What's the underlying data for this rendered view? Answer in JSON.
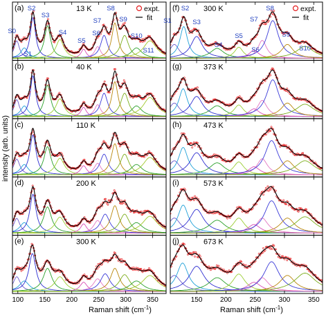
{
  "figure": {
    "ylabel": "intensity (arb. units)",
    "xlabel": "Raman shift (cm",
    "xlabel_sup": "-1",
    "xlabel_close": ")",
    "legend": {
      "expt": "expt.",
      "fit": "fit"
    }
  },
  "colors": {
    "data_points": "#e41a1c",
    "fit_line": "#000000",
    "peak_labels": "#1f3fbf",
    "peaks": [
      "#6a5acd",
      "#1fa0d8",
      "#2c2cd0",
      "#2aa02a",
      "#9acd32",
      "#d84db5",
      "#e377c2",
      "#3a3ad8",
      "#b8860b",
      "#7cae1c",
      "#2ca02c",
      "#a0c82a"
    ]
  },
  "chart_data": [
    {
      "type": "line",
      "panel": "(a)",
      "temp": "13 K",
      "xlim": [
        90,
        375
      ],
      "peak_labels": [
        "S0",
        "S1",
        "S2",
        "S3",
        "S4",
        "S5",
        "S6",
        "S7",
        "S8",
        "S9",
        "S10",
        "S11"
      ],
      "peaks": [
        {
          "name": "S0",
          "center": 98,
          "width": 6,
          "amp": 0.42
        },
        {
          "name": "S1",
          "center": 112,
          "width": 8,
          "amp": 0.25
        },
        {
          "name": "S2",
          "center": 128,
          "width": 6,
          "amp": 0.98
        },
        {
          "name": "S3",
          "center": 155,
          "width": 7,
          "amp": 0.78
        },
        {
          "name": "S4",
          "center": 178,
          "width": 9,
          "amp": 0.45
        },
        {
          "name": "S5",
          "center": 222,
          "width": 6,
          "amp": 0.22
        },
        {
          "name": "S6",
          "center": 248,
          "width": 7,
          "amp": 0.28
        },
        {
          "name": "S7",
          "center": 260,
          "width": 8,
          "amp": 0.55
        },
        {
          "name": "S8",
          "center": 280,
          "width": 7,
          "amp": 0.85
        },
        {
          "name": "S9",
          "center": 298,
          "width": 9,
          "amp": 0.55
        },
        {
          "name": "S10",
          "center": 320,
          "width": 12,
          "amp": 0.25
        },
        {
          "name": "S11",
          "center": 345,
          "width": 15,
          "amp": 0.42
        }
      ]
    },
    {
      "type": "line",
      "panel": "(b)",
      "temp": "40 K",
      "xlim": [
        90,
        375
      ],
      "peaks": [
        {
          "name": "S0",
          "center": 98,
          "width": 6,
          "amp": 0.4
        },
        {
          "name": "S1",
          "center": 112,
          "width": 8,
          "amp": 0.25
        },
        {
          "name": "S2",
          "center": 128,
          "width": 6,
          "amp": 0.96
        },
        {
          "name": "S3",
          "center": 155,
          "width": 7,
          "amp": 0.74
        },
        {
          "name": "S4",
          "center": 178,
          "width": 9,
          "amp": 0.42
        },
        {
          "name": "S5",
          "center": 222,
          "width": 6,
          "amp": 0.22
        },
        {
          "name": "S6",
          "center": 248,
          "width": 7,
          "amp": 0.28
        },
        {
          "name": "S7",
          "center": 260,
          "width": 8,
          "amp": 0.55
        },
        {
          "name": "S8",
          "center": 280,
          "width": 7,
          "amp": 0.82
        },
        {
          "name": "S9",
          "center": 298,
          "width": 9,
          "amp": 0.55
        },
        {
          "name": "S10",
          "center": 320,
          "width": 12,
          "amp": 0.25
        },
        {
          "name": "S11",
          "center": 345,
          "width": 15,
          "amp": 0.45
        }
      ]
    },
    {
      "type": "line",
      "panel": "(c)",
      "temp": "110 K",
      "xlim": [
        90,
        375
      ],
      "peaks": [
        {
          "name": "S0",
          "center": 98,
          "width": 7,
          "amp": 0.38
        },
        {
          "name": "S1",
          "center": 112,
          "width": 9,
          "amp": 0.25
        },
        {
          "name": "S2",
          "center": 128,
          "width": 7,
          "amp": 0.96
        },
        {
          "name": "S3",
          "center": 155,
          "width": 8,
          "amp": 0.68
        },
        {
          "name": "S4",
          "center": 178,
          "width": 10,
          "amp": 0.4
        },
        {
          "name": "S5",
          "center": 222,
          "width": 7,
          "amp": 0.22
        },
        {
          "name": "S6",
          "center": 248,
          "width": 8,
          "amp": 0.28
        },
        {
          "name": "S7",
          "center": 260,
          "width": 9,
          "amp": 0.5
        },
        {
          "name": "S8",
          "center": 280,
          "width": 8,
          "amp": 0.75
        },
        {
          "name": "S9",
          "center": 298,
          "width": 10,
          "amp": 0.5
        },
        {
          "name": "S10",
          "center": 320,
          "width": 13,
          "amp": 0.25
        },
        {
          "name": "S11",
          "center": 345,
          "width": 16,
          "amp": 0.42
        }
      ]
    },
    {
      "type": "line",
      "panel": "(d)",
      "temp": "200 K",
      "xlim": [
        90,
        375
      ],
      "peaks": [
        {
          "name": "S0",
          "center": 98,
          "width": 7,
          "amp": 0.35
        },
        {
          "name": "S1",
          "center": 112,
          "width": 10,
          "amp": 0.25
        },
        {
          "name": "S2",
          "center": 128,
          "width": 7,
          "amp": 0.92
        },
        {
          "name": "S3",
          "center": 155,
          "width": 9,
          "amp": 0.62
        },
        {
          "name": "S4",
          "center": 178,
          "width": 11,
          "amp": 0.38
        },
        {
          "name": "S5",
          "center": 222,
          "width": 7,
          "amp": 0.22
        },
        {
          "name": "S6",
          "center": 248,
          "width": 9,
          "amp": 0.3
        },
        {
          "name": "S7",
          "center": 262,
          "width": 10,
          "amp": 0.45
        },
        {
          "name": "S8",
          "center": 280,
          "width": 9,
          "amp": 0.65
        },
        {
          "name": "S9",
          "center": 298,
          "width": 11,
          "amp": 0.45
        },
        {
          "name": "S10",
          "center": 320,
          "width": 14,
          "amp": 0.25
        },
        {
          "name": "S11",
          "center": 345,
          "width": 17,
          "amp": 0.4
        }
      ]
    },
    {
      "type": "line",
      "panel": "(e)",
      "temp": "300 K",
      "xlim": [
        90,
        375
      ],
      "peaks": [
        {
          "name": "S0",
          "center": 98,
          "width": 8,
          "amp": 0.35
        },
        {
          "name": "S1",
          "center": 112,
          "width": 11,
          "amp": 0.25
        },
        {
          "name": "S2",
          "center": 127,
          "width": 8,
          "amp": 0.9
        },
        {
          "name": "S3",
          "center": 155,
          "width": 10,
          "amp": 0.55
        },
        {
          "name": "S4",
          "center": 178,
          "width": 12,
          "amp": 0.35
        },
        {
          "name": "S5",
          "center": 222,
          "width": 8,
          "amp": 0.22
        },
        {
          "name": "S6",
          "center": 248,
          "width": 10,
          "amp": 0.3
        },
        {
          "name": "S7",
          "center": 262,
          "width": 11,
          "amp": 0.42
        },
        {
          "name": "S8",
          "center": 280,
          "width": 10,
          "amp": 0.55
        },
        {
          "name": "S9",
          "center": 298,
          "width": 12,
          "amp": 0.4
        },
        {
          "name": "S10",
          "center": 320,
          "width": 15,
          "amp": 0.25
        },
        {
          "name": "S11",
          "center": 345,
          "width": 18,
          "amp": 0.38
        }
      ]
    },
    {
      "type": "line",
      "panel": "(f)",
      "temp": "300 K",
      "xlim": [
        105,
        365
      ],
      "peak_labels": [
        "S1",
        "S2",
        "S3",
        "S4",
        "S5",
        "S6",
        "S7",
        "S8",
        "S9",
        "S10"
      ],
      "peaks": [
        {
          "name": "S1",
          "center": 112,
          "width": 10,
          "amp": 0.35
        },
        {
          "name": "S2",
          "center": 128,
          "width": 8,
          "amp": 0.8
        },
        {
          "name": "S3",
          "center": 150,
          "width": 12,
          "amp": 0.55
        },
        {
          "name": "S4",
          "center": 185,
          "width": 14,
          "amp": 0.25
        },
        {
          "name": "S5",
          "center": 222,
          "width": 9,
          "amp": 0.28
        },
        {
          "name": "S6",
          "center": 248,
          "width": 10,
          "amp": 0.2
        },
        {
          "name": "S7",
          "center": 262,
          "width": 9,
          "amp": 0.45
        },
        {
          "name": "S8",
          "center": 280,
          "width": 12,
          "amp": 0.95
        },
        {
          "name": "S9",
          "center": 305,
          "width": 12,
          "amp": 0.35
        },
        {
          "name": "S10",
          "center": 335,
          "width": 18,
          "amp": 0.3
        }
      ]
    },
    {
      "type": "line",
      "panel": "(g)",
      "temp": "373 K",
      "xlim": [
        105,
        365
      ],
      "peaks": [
        {
          "name": "S1",
          "center": 112,
          "width": 11,
          "amp": 0.35
        },
        {
          "name": "S2",
          "center": 127,
          "width": 9,
          "amp": 0.72
        },
        {
          "name": "S3",
          "center": 150,
          "width": 13,
          "amp": 0.52
        },
        {
          "name": "S4",
          "center": 185,
          "width": 15,
          "amp": 0.28
        },
        {
          "name": "S5",
          "center": 222,
          "width": 10,
          "amp": 0.3
        },
        {
          "name": "S6",
          "center": 248,
          "width": 11,
          "amp": 0.2
        },
        {
          "name": "S7",
          "center": 262,
          "width": 10,
          "amp": 0.42
        },
        {
          "name": "S8",
          "center": 280,
          "width": 13,
          "amp": 0.95
        },
        {
          "name": "S9",
          "center": 305,
          "width": 13,
          "amp": 0.35
        },
        {
          "name": "S10",
          "center": 335,
          "width": 19,
          "amp": 0.32
        }
      ]
    },
    {
      "type": "line",
      "panel": "(h)",
      "temp": "473 K",
      "xlim": [
        105,
        365
      ],
      "peaks": [
        {
          "name": "S1",
          "center": 112,
          "width": 12,
          "amp": 0.35
        },
        {
          "name": "S2",
          "center": 127,
          "width": 10,
          "amp": 0.68
        },
        {
          "name": "S3",
          "center": 150,
          "width": 14,
          "amp": 0.55
        },
        {
          "name": "S4",
          "center": 185,
          "width": 16,
          "amp": 0.3
        },
        {
          "name": "S5",
          "center": 222,
          "width": 11,
          "amp": 0.32
        },
        {
          "name": "S6",
          "center": 248,
          "width": 12,
          "amp": 0.2
        },
        {
          "name": "S7",
          "center": 262,
          "width": 11,
          "amp": 0.4
        },
        {
          "name": "S8",
          "center": 278,
          "width": 14,
          "amp": 0.85
        },
        {
          "name": "S9",
          "center": 305,
          "width": 14,
          "amp": 0.35
        },
        {
          "name": "S10",
          "center": 335,
          "width": 20,
          "amp": 0.35
        }
      ]
    },
    {
      "type": "line",
      "panel": "(i)",
      "temp": "573 K",
      "xlim": [
        105,
        365
      ],
      "peaks": [
        {
          "name": "S1",
          "center": 112,
          "width": 13,
          "amp": 0.35
        },
        {
          "name": "S2",
          "center": 127,
          "width": 11,
          "amp": 0.65
        },
        {
          "name": "S3",
          "center": 150,
          "width": 15,
          "amp": 0.55
        },
        {
          "name": "S4",
          "center": 185,
          "width": 17,
          "amp": 0.3
        },
        {
          "name": "S5",
          "center": 222,
          "width": 12,
          "amp": 0.35
        },
        {
          "name": "S6",
          "center": 248,
          "width": 13,
          "amp": 0.2
        },
        {
          "name": "S7",
          "center": 262,
          "width": 12,
          "amp": 0.35
        },
        {
          "name": "S8",
          "center": 278,
          "width": 15,
          "amp": 0.75
        },
        {
          "name": "S9",
          "center": 305,
          "width": 15,
          "amp": 0.35
        },
        {
          "name": "S10",
          "center": 335,
          "width": 21,
          "amp": 0.38
        }
      ]
    },
    {
      "type": "line",
      "panel": "(j)",
      "temp": "673 K",
      "xlim": [
        105,
        365
      ],
      "peaks": [
        {
          "name": "S1",
          "center": 112,
          "width": 14,
          "amp": 0.35
        },
        {
          "name": "S2",
          "center": 126,
          "width": 12,
          "amp": 0.62
        },
        {
          "name": "S3",
          "center": 150,
          "width": 16,
          "amp": 0.55
        },
        {
          "name": "S4",
          "center": 185,
          "width": 18,
          "amp": 0.3
        },
        {
          "name": "S5",
          "center": 222,
          "width": 13,
          "amp": 0.38
        },
        {
          "name": "S6",
          "center": 248,
          "width": 14,
          "amp": 0.2
        },
        {
          "name": "S7",
          "center": 262,
          "width": 13,
          "amp": 0.3
        },
        {
          "name": "S8",
          "center": 278,
          "width": 16,
          "amp": 0.65
        },
        {
          "name": "S9",
          "center": 305,
          "width": 16,
          "amp": 0.35
        },
        {
          "name": "S10",
          "center": 335,
          "width": 22,
          "amp": 0.4
        }
      ]
    }
  ],
  "axes": {
    "left": {
      "ticks": [
        100,
        150,
        200,
        250,
        300,
        350
      ],
      "tick_labels": [
        "100",
        "150",
        "200",
        "250",
        "300",
        "350"
      ]
    },
    "right": {
      "ticks": [
        150,
        200,
        250,
        300,
        350
      ],
      "tick_labels": [
        "150",
        "200",
        "250",
        "300",
        "350"
      ]
    }
  }
}
